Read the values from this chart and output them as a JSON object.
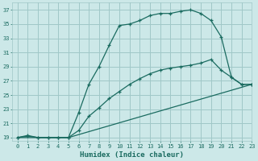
{
  "title": "",
  "xlabel": "Humidex (Indice chaleur)",
  "ylabel": "",
  "bg_color": "#cce8e8",
  "line_color": "#1a6b60",
  "grid_color": "#a0c8c8",
  "curve1_x": [
    0,
    1,
    2,
    3,
    4,
    5,
    6,
    7,
    8,
    9,
    10,
    11,
    12,
    13,
    14,
    15,
    16,
    17,
    18,
    19,
    20,
    21,
    22,
    23
  ],
  "curve1_y": [
    19,
    19.3,
    19,
    19,
    19,
    19,
    22.5,
    26.5,
    29,
    32,
    34.8,
    35.0,
    35.5,
    36.2,
    36.5,
    36.5,
    36.8,
    37,
    36.5,
    35.5,
    33.2,
    27.5,
    26.5,
    26.5
  ],
  "curve2_x": [
    0,
    1,
    2,
    3,
    4,
    5,
    6,
    7,
    8,
    9,
    10,
    11,
    12,
    13,
    14,
    15,
    16,
    17,
    18,
    19,
    20,
    21,
    22,
    23
  ],
  "curve2_y": [
    19,
    19.2,
    19,
    19,
    19,
    19,
    20,
    22,
    23.2,
    24.5,
    25.5,
    26.5,
    27.3,
    28.0,
    28.5,
    28.8,
    29.0,
    29.2,
    29.5,
    30.0,
    28.5,
    27.5,
    26.5,
    26.5
  ],
  "curve3_x": [
    0,
    1,
    2,
    3,
    4,
    5,
    23
  ],
  "curve3_y": [
    19,
    19,
    19,
    19,
    19,
    19,
    26.5
  ],
  "xlim": [
    -0.5,
    23
  ],
  "ylim": [
    18.5,
    38
  ],
  "yticks": [
    19,
    21,
    23,
    25,
    27,
    29,
    31,
    33,
    35,
    37
  ],
  "xticks": [
    0,
    1,
    2,
    3,
    4,
    5,
    6,
    7,
    8,
    9,
    10,
    11,
    12,
    13,
    14,
    15,
    16,
    17,
    18,
    19,
    20,
    21,
    22,
    23
  ],
  "xlabel_fontsize": 6.5,
  "tick_fontsize": 5.0
}
